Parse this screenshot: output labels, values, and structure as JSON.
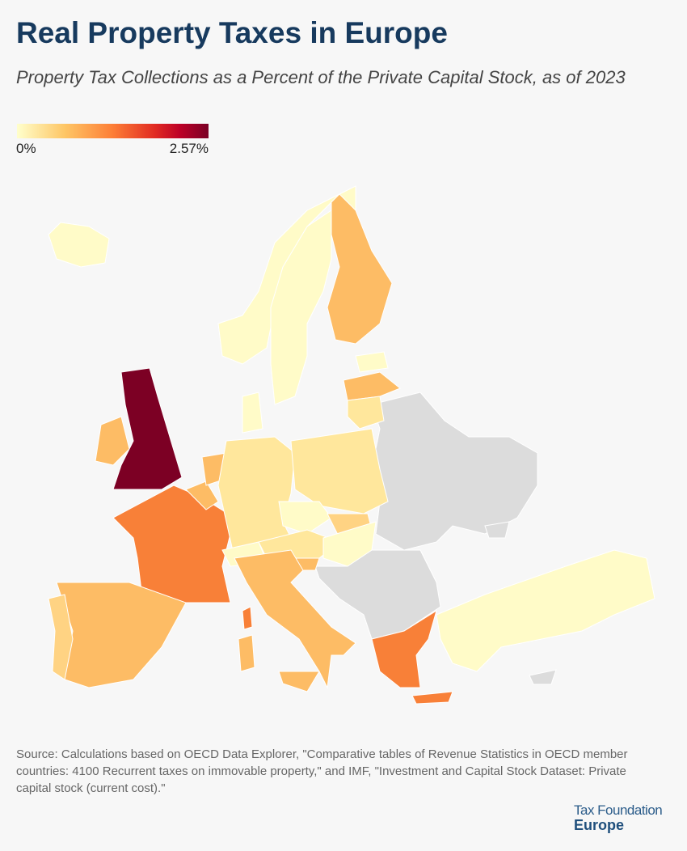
{
  "title": "Real Property Taxes in Europe",
  "subtitle": "Property Tax Collections as a Percent of the Private Capital Stock, as of 2023",
  "legend": {
    "min_label": "0%",
    "max_label": "2.57%",
    "min": 0,
    "max": 2.57,
    "colors": [
      "#ffffcc",
      "#fec665",
      "#fd7e36",
      "#bd0026",
      "#7a0025"
    ]
  },
  "source": "Source: Calculations based on OECD Data Explorer, \"Comparative tables of Revenue Statistics in OECD member countries: 4100 Recurrent taxes on immovable property,\" and IMF, \"Investment and Capital Stock Dataset: Private capital stock (current cost).\"",
  "logo": {
    "line1": "Tax Foundation",
    "line2": "Europe"
  },
  "colors": {
    "very_low": "#fffbc8",
    "low": "#ffe79c",
    "mid_low": "#ffd383",
    "mid": "#fdbc65",
    "high": "#f88038",
    "top": "#7c0024",
    "no_data": "#dcdcdc"
  }
}
